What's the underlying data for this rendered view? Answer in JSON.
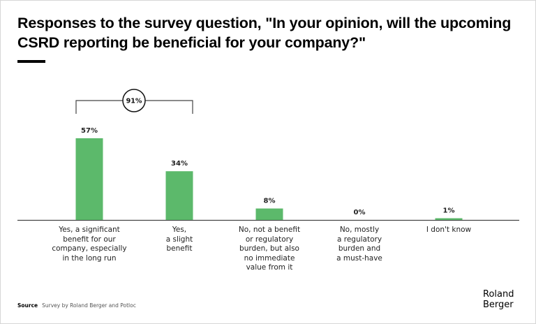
{
  "title": "Responses to the survey question, \"In your opinion, will the upcoming CSRD reporting be beneficial for your company?\"",
  "chart_data": {
    "type": "bar",
    "title": "Responses to the survey question, \"In your opinion, will the upcoming CSRD reporting be beneficial for your company?\"",
    "xlabel": "",
    "ylabel": "",
    "ylim": [
      0,
      57
    ],
    "grid": false,
    "categories": [
      "Yes, a significant\nbenefit for our\ncompany, especially\nin the long run",
      "Yes,\na slight\nbenefit",
      "No, not a benefit\nor regulatory\nburden, but also\nno immediate\nvalue from it",
      "No, mostly\na regulatory\nburden and\na must-have",
      "I don't know"
    ],
    "values": [
      57,
      34,
      8,
      0,
      1
    ],
    "value_labels": [
      "57%",
      "34%",
      "8%",
      "0%",
      "1%"
    ],
    "annotation": {
      "label": "91%",
      "spans_categories": [
        0,
        1
      ]
    },
    "bar_color": "#5cb96b"
  },
  "footer": {
    "source_label": "Source",
    "source_text": "Survey by Roland Berger and Potloc"
  },
  "logo": {
    "line1": "Roland",
    "line2": "Berger"
  }
}
